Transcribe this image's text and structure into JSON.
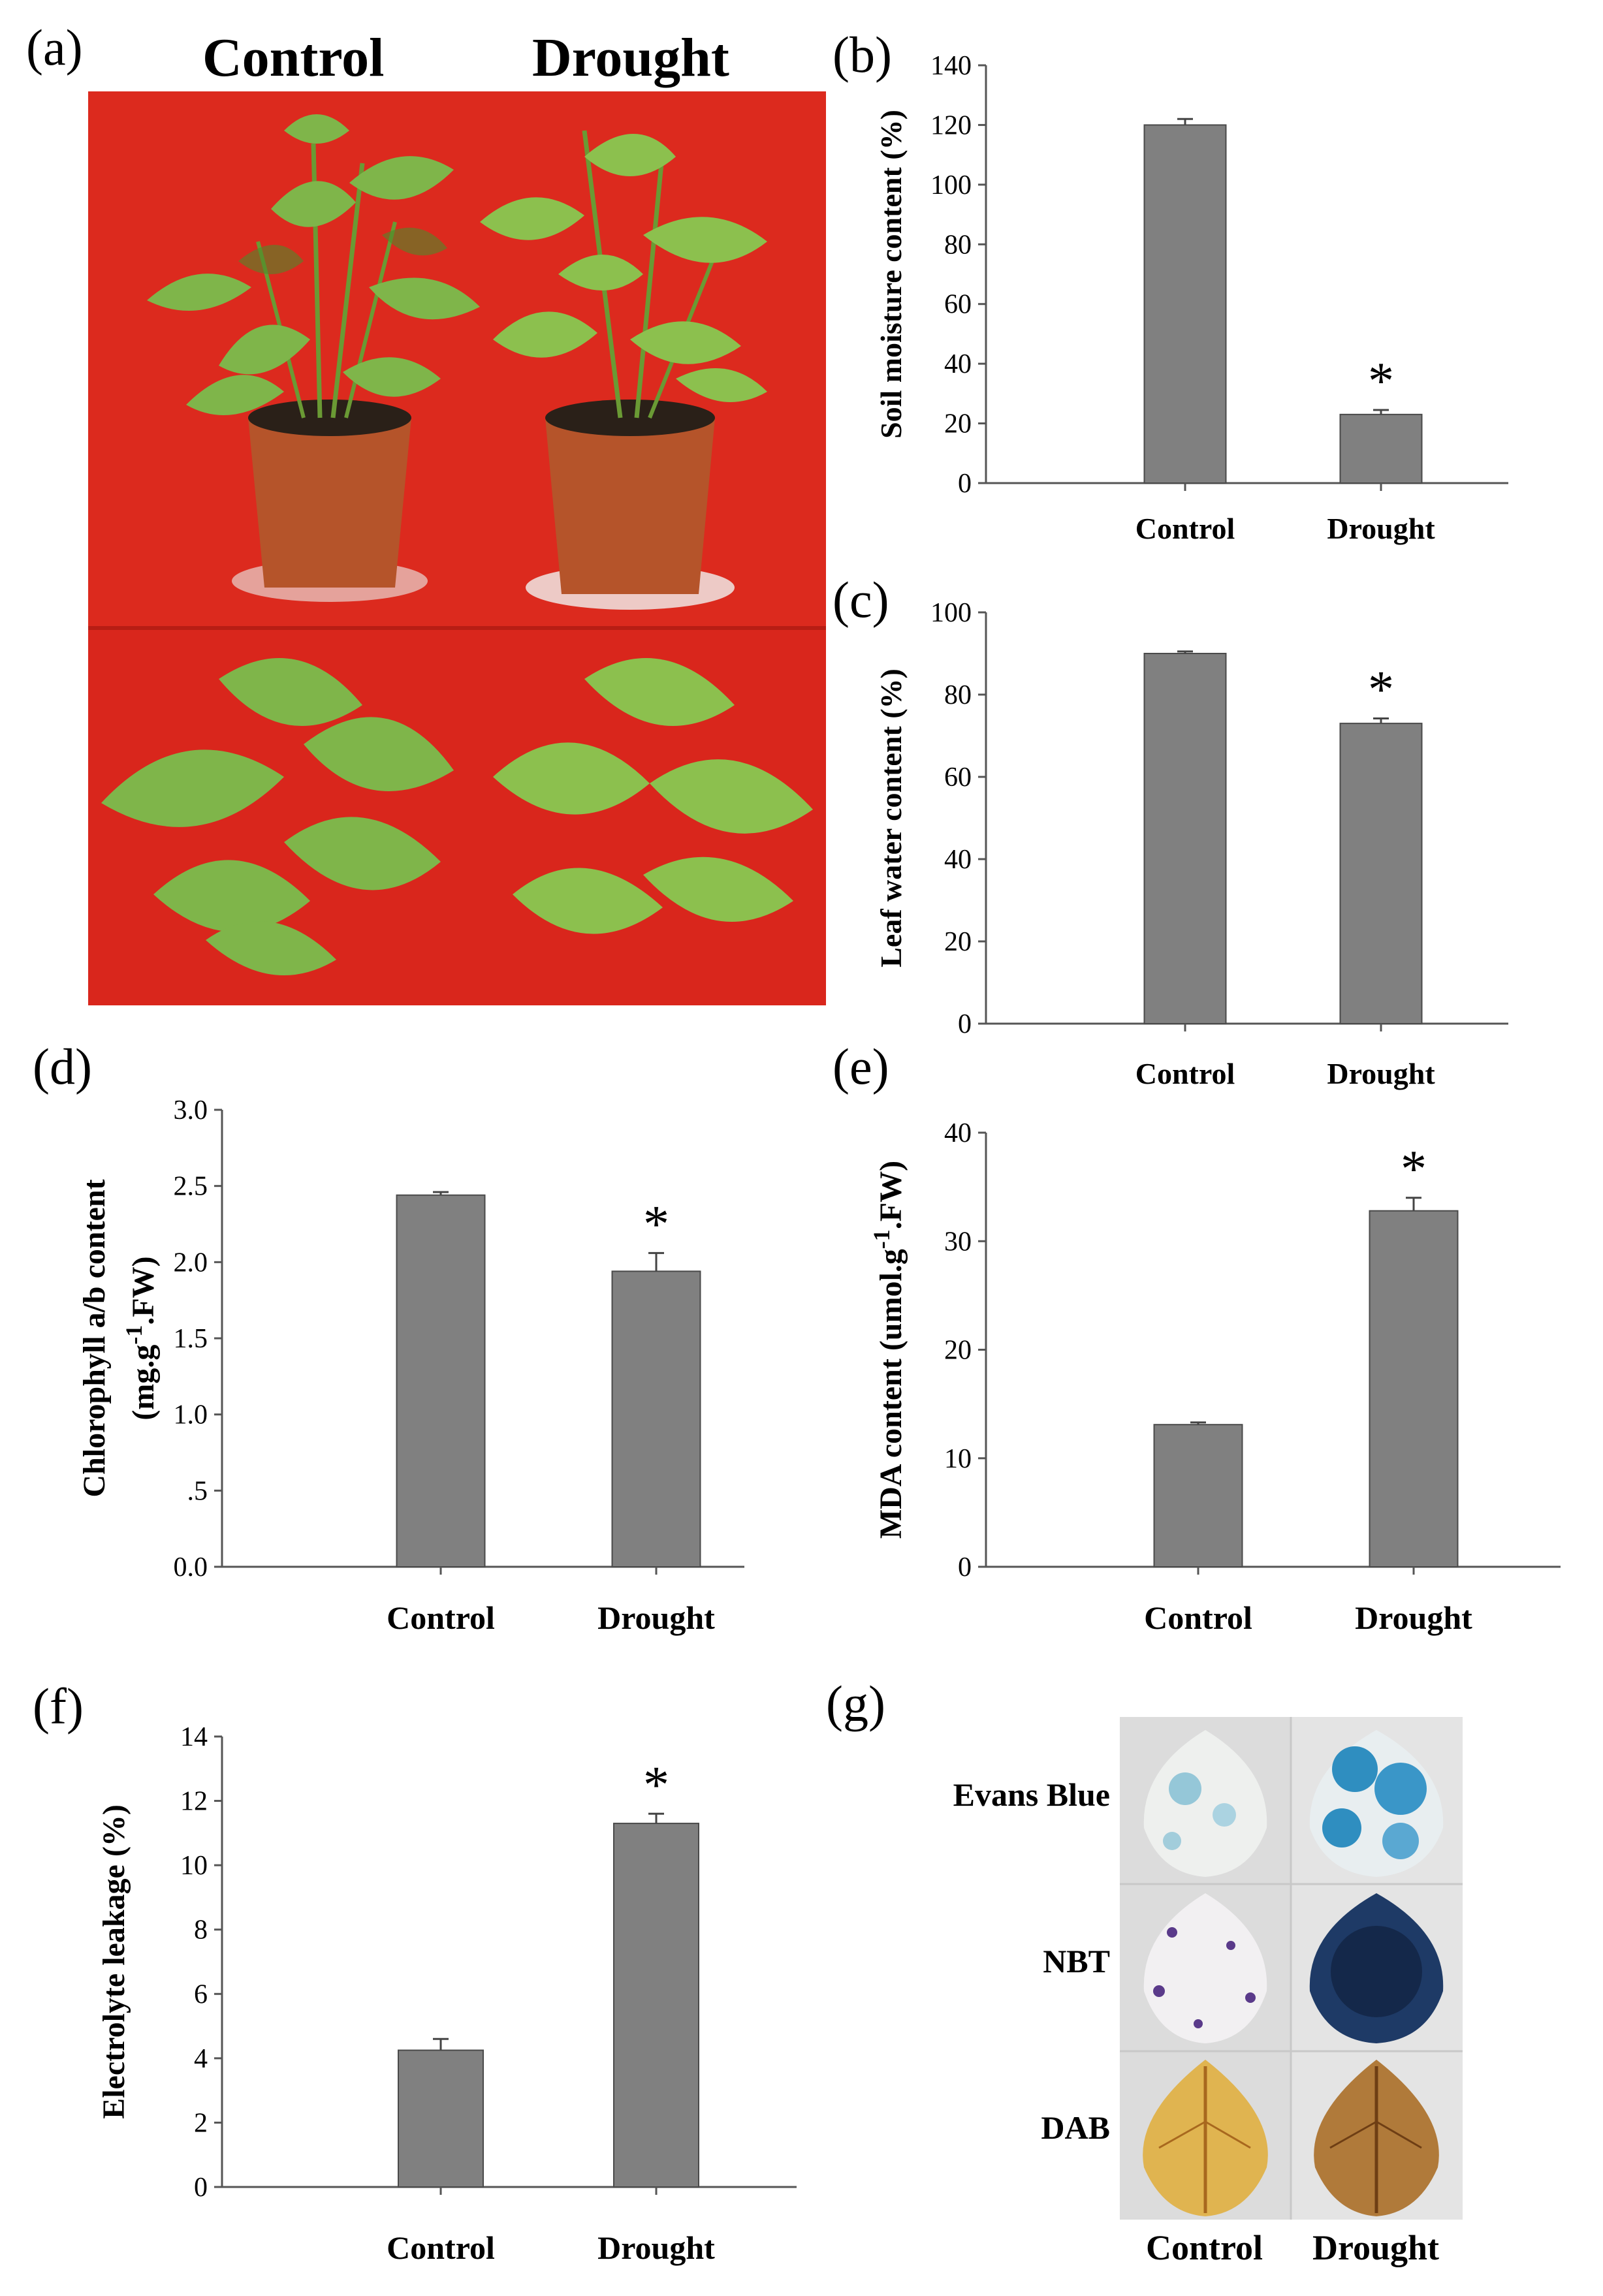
{
  "panel_a": {
    "label": "(a)",
    "col_labels": [
      "Control",
      "Drought"
    ],
    "colors": {
      "background": "#d9261c",
      "leaf": "#7fb54a",
      "leaf_dark": "#4f8a2a",
      "pot": "#b5542a",
      "soil": "#2a2018"
    }
  },
  "panel_g": {
    "label": "(g)",
    "row_labels": [
      "Evans Blue",
      "NBT",
      "DAB"
    ],
    "col_labels": [
      "Control",
      "Drought"
    ]
  },
  "chart_data": [
    {
      "id": "b",
      "label": "(b)",
      "type": "bar",
      "categories": [
        "Control",
        "Drought"
      ],
      "values": [
        120,
        23
      ],
      "errors": [
        2,
        1.5
      ],
      "significance": [
        "",
        "*"
      ],
      "ylabel": "Soil moisture content (%)",
      "ylim": [
        0,
        140
      ],
      "yticks": [
        "0",
        "20",
        "40",
        "60",
        "80",
        "100",
        "120",
        "140"
      ],
      "bar_color": "#808080"
    },
    {
      "id": "c",
      "label": "(c)",
      "type": "bar",
      "categories": [
        "Control",
        "Drought"
      ],
      "values": [
        90,
        73
      ],
      "errors": [
        0.5,
        1.2
      ],
      "significance": [
        "",
        "*"
      ],
      "ylabel": "Leaf water content (%)",
      "ylim": [
        0,
        100
      ],
      "yticks": [
        "0",
        "20",
        "40",
        "60",
        "80",
        "100"
      ],
      "bar_color": "#808080"
    },
    {
      "id": "d",
      "label": "(d)",
      "type": "bar",
      "categories": [
        "Control",
        "Drought"
      ],
      "values": [
        2.44,
        1.94
      ],
      "errors": [
        0.02,
        0.12
      ],
      "significance": [
        "",
        "*"
      ],
      "ylabel": "Chlorophyll  a/b content",
      "ylabel2": "(mg.g",
      "ylabel2_sup": "-1",
      "ylabel2_tail": ".FW)",
      "ylim": [
        0,
        3
      ],
      "yticks": [
        "0.0",
        ".5",
        "1.0",
        "1.5",
        "2.0",
        "2.5",
        "3.0"
      ],
      "bar_color": "#808080"
    },
    {
      "id": "e",
      "label": "(e)",
      "type": "bar",
      "categories": [
        "Control",
        "Drought"
      ],
      "values": [
        13.1,
        32.8
      ],
      "errors": [
        0.2,
        1.2
      ],
      "significance": [
        "",
        "*"
      ],
      "ylabel": "MDA content (umol.g",
      "ylabel_sup": "-1",
      "ylabel_tail": ".FW)",
      "ylim": [
        0,
        40
      ],
      "yticks": [
        "0",
        "10",
        "20",
        "30",
        "40"
      ],
      "bar_color": "#808080"
    },
    {
      "id": "f",
      "label": "(f)",
      "type": "bar",
      "categories": [
        "Control",
        "Drought"
      ],
      "values": [
        4.25,
        11.3
      ],
      "errors": [
        0.35,
        0.3
      ],
      "significance": [
        "",
        "*"
      ],
      "ylabel": "Electrolyte leakage (%)",
      "ylim": [
        0,
        14
      ],
      "yticks": [
        "0",
        "2",
        "4",
        "6",
        "8",
        "10",
        "12",
        "14"
      ],
      "bar_color": "#808080"
    }
  ]
}
